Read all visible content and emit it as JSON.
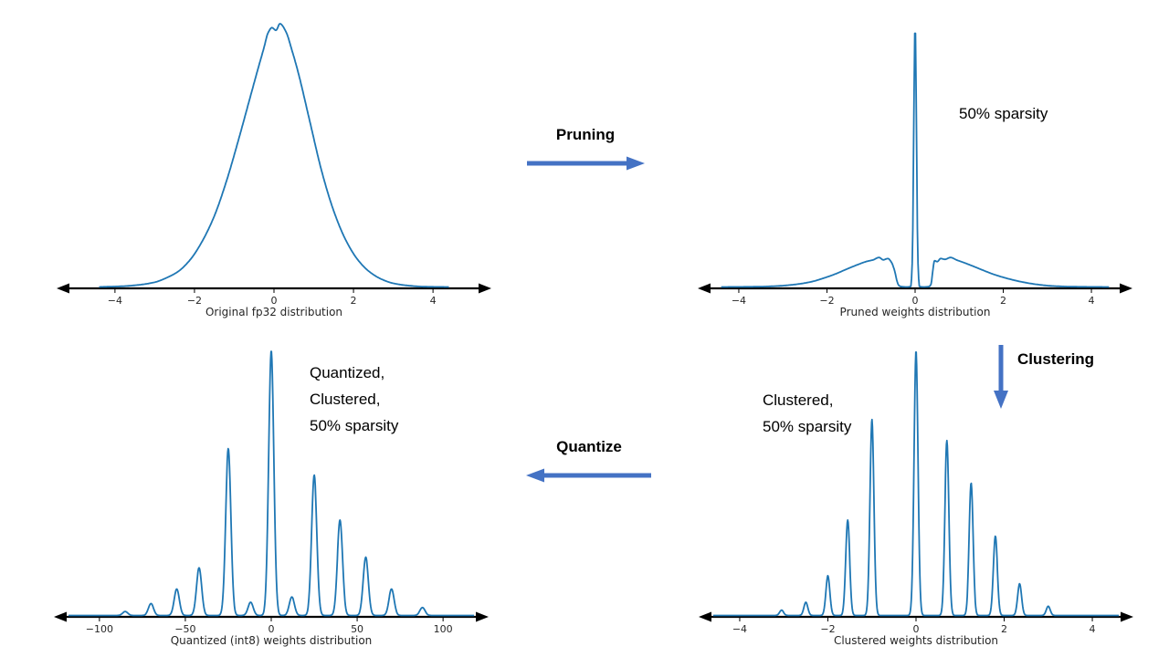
{
  "colors": {
    "curve": "#1f77b4",
    "flow_arrow": "#4472c4",
    "axis": "#000000"
  },
  "flow": {
    "pruning_label": "Pruning",
    "clustering_label": "Clustering",
    "quantize_label": "Quantize"
  },
  "chart_data": [
    {
      "id": "original",
      "type": "line",
      "title": "Original fp32 distribution",
      "x_range": [
        -5.1,
        5.1
      ],
      "ymax": 1.0,
      "grid": false,
      "xticks": [
        {
          "v": -4,
          "label": "−4"
        },
        {
          "v": -2,
          "label": "−2"
        },
        {
          "v": 0,
          "label": "0"
        },
        {
          "v": 2,
          "label": "2"
        },
        {
          "v": 4,
          "label": "4"
        }
      ],
      "points": [
        [
          -4.4,
          0
        ],
        [
          -3.8,
          0.003
        ],
        [
          -3.4,
          0.008
        ],
        [
          -3.0,
          0.018
        ],
        [
          -2.7,
          0.035
        ],
        [
          -2.4,
          0.06
        ],
        [
          -2.1,
          0.105
        ],
        [
          -1.8,
          0.175
        ],
        [
          -1.5,
          0.27
        ],
        [
          -1.2,
          0.4
        ],
        [
          -0.9,
          0.555
        ],
        [
          -0.6,
          0.72
        ],
        [
          -0.4,
          0.83
        ],
        [
          -0.25,
          0.91
        ],
        [
          -0.15,
          0.965
        ],
        [
          -0.05,
          0.985
        ],
        [
          0.05,
          0.975
        ],
        [
          0.15,
          1.0
        ],
        [
          0.3,
          0.97
        ],
        [
          0.45,
          0.9
        ],
        [
          0.6,
          0.82
        ],
        [
          0.9,
          0.63
        ],
        [
          1.2,
          0.44
        ],
        [
          1.5,
          0.29
        ],
        [
          1.8,
          0.18
        ],
        [
          2.1,
          0.105
        ],
        [
          2.4,
          0.058
        ],
        [
          2.7,
          0.03
        ],
        [
          3.0,
          0.014
        ],
        [
          3.4,
          0.005
        ],
        [
          3.8,
          0.001
        ],
        [
          4.4,
          0
        ]
      ],
      "annotation_lines": []
    },
    {
      "id": "pruned",
      "type": "line",
      "title": "Pruned weights distribution",
      "x_range": [
        -4.6,
        4.6
      ],
      "ymax": 1.0,
      "grid": false,
      "xticks": [
        {
          "v": -4,
          "label": "−4"
        },
        {
          "v": -2,
          "label": "−2"
        },
        {
          "v": 0,
          "label": "0"
        },
        {
          "v": 2,
          "label": "2"
        },
        {
          "v": 4,
          "label": "4"
        }
      ],
      "points": [
        [
          -4.4,
          0
        ],
        [
          -3.6,
          0.001
        ],
        [
          -3.1,
          0.004
        ],
        [
          -2.7,
          0.01
        ],
        [
          -2.35,
          0.02
        ],
        [
          -2.05,
          0.035
        ],
        [
          -1.8,
          0.05
        ],
        [
          -1.55,
          0.068
        ],
        [
          -1.3,
          0.085
        ],
        [
          -1.1,
          0.097
        ],
        [
          -0.95,
          0.103
        ],
        [
          -0.82,
          0.112
        ],
        [
          -0.72,
          0.103
        ],
        [
          -0.62,
          0.108
        ],
        [
          -0.53,
          0.092
        ],
        [
          -0.46,
          0.058
        ],
        [
          -0.41,
          0.022
        ],
        [
          -0.37,
          0.006
        ],
        [
          -0.3,
          0.001
        ],
        [
          -0.18,
          0
        ],
        [
          -0.1,
          0.002
        ],
        [
          -0.06,
          0.12
        ],
        [
          -0.035,
          0.52
        ],
        [
          0,
          1.0
        ],
        [
          0.035,
          0.52
        ],
        [
          0.06,
          0.12
        ],
        [
          0.1,
          0.002
        ],
        [
          0.18,
          0
        ],
        [
          0.3,
          0.001
        ],
        [
          0.36,
          0.01
        ],
        [
          0.4,
          0.06
        ],
        [
          0.44,
          0.1
        ],
        [
          0.5,
          0.096
        ],
        [
          0.58,
          0.108
        ],
        [
          0.68,
          0.105
        ],
        [
          0.8,
          0.112
        ],
        [
          0.95,
          0.102
        ],
        [
          1.1,
          0.093
        ],
        [
          1.3,
          0.08
        ],
        [
          1.55,
          0.063
        ],
        [
          1.8,
          0.047
        ],
        [
          2.1,
          0.032
        ],
        [
          2.4,
          0.02
        ],
        [
          2.75,
          0.01
        ],
        [
          3.1,
          0.004
        ],
        [
          3.6,
          0.001
        ],
        [
          4.4,
          0
        ]
      ],
      "annotation_lines": [
        "50% sparsity"
      ]
    },
    {
      "id": "clustered",
      "type": "spikes",
      "title": "Clustered weights distribution",
      "x_range": [
        -4.6,
        4.6
      ],
      "ymax": 1.0,
      "grid": false,
      "spike_width": 0.045,
      "xticks": [
        {
          "v": -4,
          "label": "−4"
        },
        {
          "v": -2,
          "label": "−2"
        },
        {
          "v": 0,
          "label": "0"
        },
        {
          "v": 2,
          "label": "2"
        },
        {
          "v": 4,
          "label": "4"
        }
      ],
      "spikes": [
        [
          -3.05,
          0.02
        ],
        [
          -2.5,
          0.05
        ],
        [
          -2.0,
          0.15
        ],
        [
          -1.55,
          0.36
        ],
        [
          -1.0,
          0.74
        ],
        [
          0.0,
          1.0
        ],
        [
          0.7,
          0.66
        ],
        [
          1.25,
          0.5
        ],
        [
          1.8,
          0.3
        ],
        [
          2.35,
          0.12
        ],
        [
          3.0,
          0.035
        ]
      ],
      "annotation_lines": [
        "Clustered,",
        "50% sparsity"
      ]
    },
    {
      "id": "quantized",
      "type": "spikes",
      "title": "Quantized (int8) weights distribution",
      "x_range": [
        -118,
        118
      ],
      "ymax": 1.0,
      "grid": false,
      "spike_width": 1.5,
      "xticks": [
        {
          "v": -100,
          "label": "−100"
        },
        {
          "v": -50,
          "label": "−50"
        },
        {
          "v": 0,
          "label": "0"
        },
        {
          "v": 50,
          "label": "50"
        },
        {
          "v": 100,
          "label": "100"
        }
      ],
      "spikes": [
        [
          -85,
          0.015
        ],
        [
          -70,
          0.045
        ],
        [
          -55,
          0.1
        ],
        [
          -42,
          0.18
        ],
        [
          -25,
          0.63
        ],
        [
          -12,
          0.05
        ],
        [
          0,
          1.0
        ],
        [
          12,
          0.07
        ],
        [
          25,
          0.53
        ],
        [
          40,
          0.36
        ],
        [
          55,
          0.22
        ],
        [
          70,
          0.1
        ],
        [
          88,
          0.03
        ]
      ],
      "annotation_lines": [
        "Quantized,",
        "Clustered,",
        "50% sparsity"
      ]
    }
  ]
}
